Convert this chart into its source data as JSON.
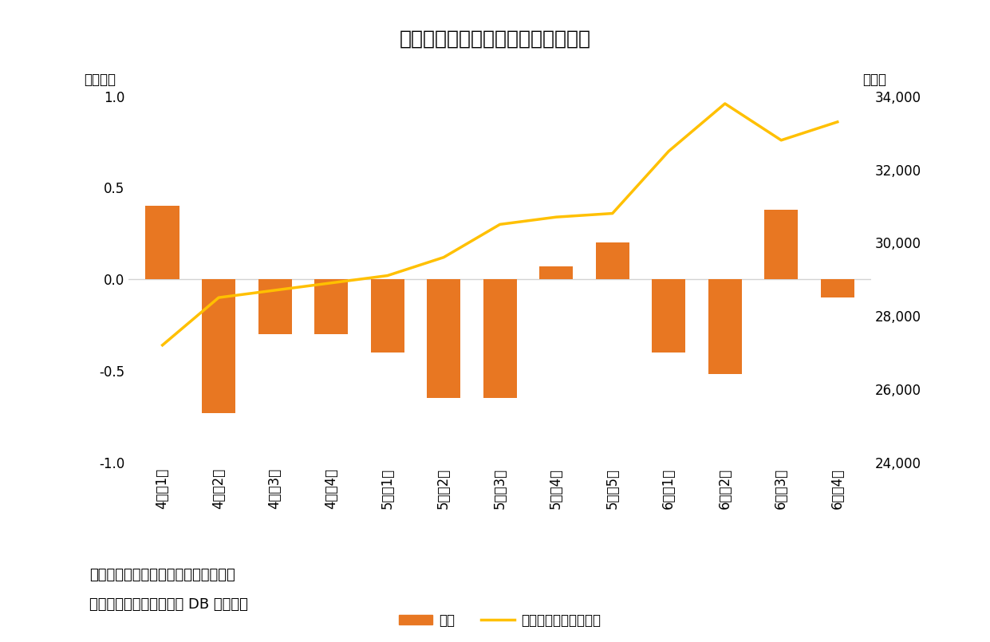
{
  "categories": [
    "4月第1週",
    "4月第2週",
    "4月第3週",
    "4月第4週",
    "5月第1週",
    "5月第2週",
    "5月第3週",
    "5月第4週",
    "5月第5週",
    "6月第1週",
    "6月第2週",
    "6月第3週",
    "6月第4週"
  ],
  "bar_values": [
    0.4,
    -0.73,
    -0.3,
    -0.3,
    -0.4,
    -0.65,
    -0.65,
    0.07,
    0.2,
    -0.4,
    -0.52,
    0.38,
    -0.1
  ],
  "nikkei_values": [
    27200,
    28500,
    28700,
    28900,
    29100,
    29600,
    30500,
    30700,
    30800,
    32500,
    33800,
    32800,
    33300
  ],
  "bar_color": "#E87722",
  "line_color": "#FFC000",
  "left_ylim": [
    -1.0,
    1.0
  ],
  "right_ylim": [
    24000,
    34000
  ],
  "left_yticks": [
    -1.0,
    -0.5,
    0.0,
    0.5,
    1.0
  ],
  "right_yticks": [
    24000,
    26000,
    28000,
    30000,
    32000,
    34000
  ],
  "title": "図表３　個人は３カ月連続売り越し",
  "left_ylabel": "「兆円」",
  "left_ylabel2": "〈兆円〉",
  "right_ylabel2": "〈円〉",
  "legend_bar": "個人",
  "legend_line": "日経平均株価〈右軸〉",
  "note1": "（注）個人の現物と先物の合計、週次",
  "note2": "（資料）ニッセイ基礎研 DB から作成",
  "bg_color": "#ffffff",
  "title_fontsize": 18,
  "tick_fontsize": 12,
  "label_fontsize": 12,
  "note_fontsize": 13
}
